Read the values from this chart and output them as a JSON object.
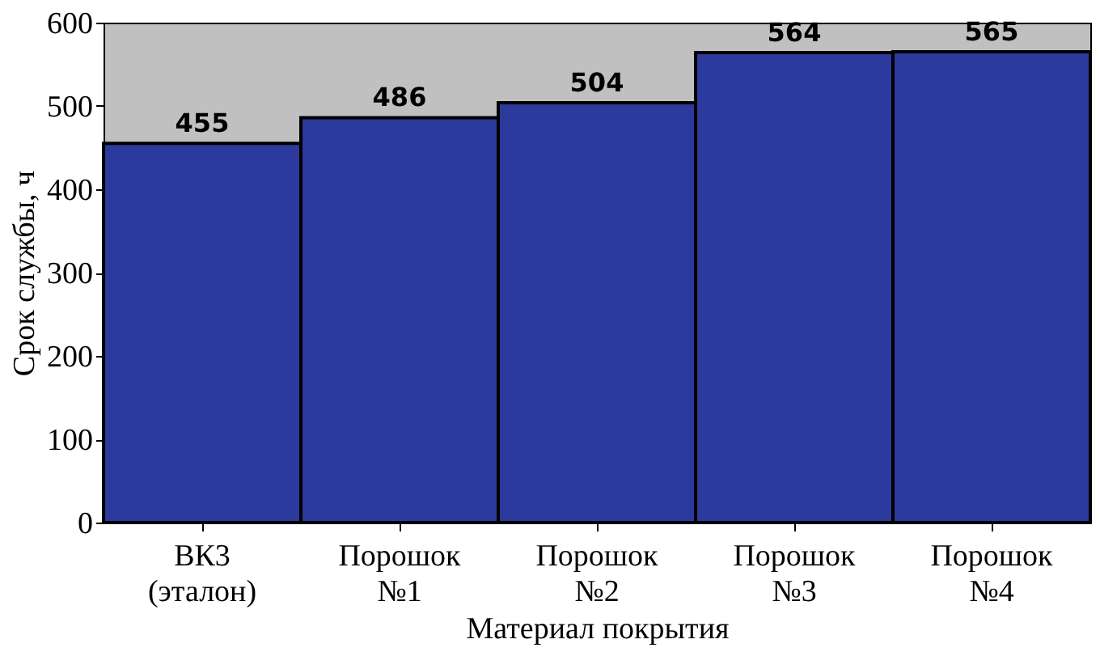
{
  "chart_data": {
    "type": "bar",
    "xlabel": "Материал покрытия",
    "ylabel": "Срок службы, ч",
    "categories": [
      "ВК3 (эталон)",
      "Порошок №1",
      "Порошок №2",
      "Порошок №3",
      "Порошок №4"
    ],
    "values": [
      455,
      486,
      504,
      564,
      565
    ],
    "color": "#2b3a9c",
    "ylim": [
      0,
      600
    ],
    "yticks": [
      0,
      100,
      200,
      300,
      400,
      500,
      600
    ],
    "grid": false,
    "data_labels": true
  }
}
